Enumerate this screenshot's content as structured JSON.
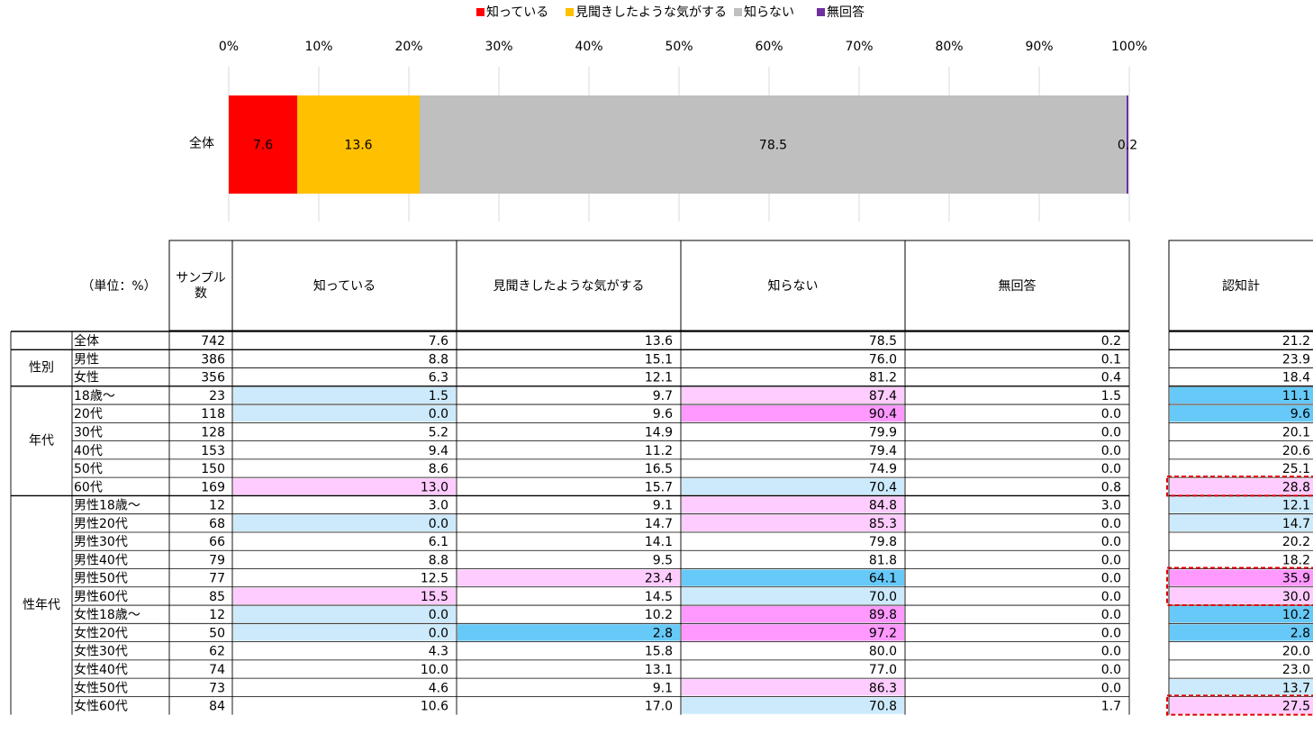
{
  "chart_data": {
    "type": "bar",
    "orientation": "horizontal",
    "stacked": true,
    "categories": [
      "全体"
    ],
    "series": [
      {
        "name": "知っている",
        "color": "#ff0000",
        "values": [
          7.6
        ]
      },
      {
        "name": "見聞きしたような気がする",
        "color": "#ffc000",
        "values": [
          13.6
        ]
      },
      {
        "name": "知らない",
        "color": "#bfbfbf",
        "values": [
          78.5
        ]
      },
      {
        "name": "無回答",
        "color": "#7030a0",
        "values": [
          0.2
        ]
      }
    ],
    "xlim": [
      0,
      100
    ],
    "xticks": [
      {
        "value": 0,
        "label": "0%"
      },
      {
        "value": 10,
        "label": "10%"
      },
      {
        "value": 20,
        "label": "20%"
      },
      {
        "value": 30,
        "label": "30%"
      },
      {
        "value": 40,
        "label": "40%"
      },
      {
        "value": 50,
        "label": "50%"
      },
      {
        "value": 60,
        "label": "60%"
      },
      {
        "value": 70,
        "label": "70%"
      },
      {
        "value": 80,
        "label": "80%"
      },
      {
        "value": 90,
        "label": "90%"
      },
      {
        "value": 100,
        "label": "100%"
      }
    ],
    "grid": true,
    "legend": "top"
  },
  "table": {
    "unit_label": "（単位：%）",
    "sample_header": "サンプル数",
    "headers": [
      "知っている",
      "見聞きしたような気がする",
      "知らない",
      "無回答"
    ],
    "total_header": "認知計",
    "groups": [
      {
        "rows": [
          {
            "label": "全体",
            "sample": "742",
            "values": [
              "7.6",
              "13.6",
              "78.5",
              "0.2"
            ],
            "total": "21.2"
          }
        ]
      },
      {
        "label": "性別",
        "rows": [
          {
            "label": "男性",
            "sample": "386",
            "values": [
              "8.8",
              "15.1",
              "76.0",
              "0.1"
            ],
            "total": "23.9"
          },
          {
            "label": "女性",
            "sample": "356",
            "values": [
              "6.3",
              "12.1",
              "81.2",
              "0.4"
            ],
            "total": "18.4"
          }
        ]
      },
      {
        "label": "年代",
        "rows": [
          {
            "label": "18歳～",
            "sample": "23",
            "values": [
              "1.5",
              "9.7",
              "87.4",
              "1.5"
            ],
            "total": "11.1"
          },
          {
            "label": "20代",
            "sample": "118",
            "values": [
              "0.0",
              "9.6",
              "90.4",
              "0.0"
            ],
            "total": "9.6"
          },
          {
            "label": "30代",
            "sample": "128",
            "values": [
              "5.2",
              "14.9",
              "79.9",
              "0.0"
            ],
            "total": "20.1"
          },
          {
            "label": "40代",
            "sample": "153",
            "values": [
              "9.4",
              "11.2",
              "79.4",
              "0.0"
            ],
            "total": "20.6"
          },
          {
            "label": "50代",
            "sample": "150",
            "values": [
              "8.6",
              "16.5",
              "74.9",
              "0.0"
            ],
            "total": "25.1"
          },
          {
            "label": "60代",
            "sample": "169",
            "values": [
              "13.0",
              "15.7",
              "70.4",
              "0.8"
            ],
            "total": "28.8"
          }
        ]
      },
      {
        "label": "性年代",
        "rows": [
          {
            "label": "男性18歳～",
            "sample": "12",
            "values": [
              "3.0",
              "9.1",
              "84.8",
              "3.0"
            ],
            "total": "12.1"
          },
          {
            "label": "男性20代",
            "sample": "68",
            "values": [
              "0.0",
              "14.7",
              "85.3",
              "0.0"
            ],
            "total": "14.7"
          },
          {
            "label": "男性30代",
            "sample": "66",
            "values": [
              "6.1",
              "14.1",
              "79.8",
              "0.0"
            ],
            "total": "20.2"
          },
          {
            "label": "男性40代",
            "sample": "79",
            "values": [
              "8.8",
              "9.5",
              "81.8",
              "0.0"
            ],
            "total": "18.2"
          },
          {
            "label": "男性50代",
            "sample": "77",
            "values": [
              "12.5",
              "23.4",
              "64.1",
              "0.0"
            ],
            "total": "35.9"
          },
          {
            "label": "男性60代",
            "sample": "85",
            "values": [
              "15.5",
              "14.5",
              "70.0",
              "0.0"
            ],
            "total": "30.0"
          },
          {
            "label": "女性18歳～",
            "sample": "12",
            "values": [
              "0.0",
              "10.2",
              "89.8",
              "0.0"
            ],
            "total": "10.2"
          },
          {
            "label": "女性20代",
            "sample": "50",
            "values": [
              "0.0",
              "2.8",
              "97.2",
              "0.0"
            ],
            "total": "2.8"
          },
          {
            "label": "女性30代",
            "sample": "62",
            "values": [
              "4.3",
              "15.8",
              "80.0",
              "0.0"
            ],
            "total": "20.0"
          },
          {
            "label": "女性40代",
            "sample": "74",
            "values": [
              "10.0",
              "13.1",
              "77.0",
              "0.0"
            ],
            "total": "23.0"
          },
          {
            "label": "女性50代",
            "sample": "73",
            "values": [
              "4.6",
              "9.1",
              "86.3",
              "0.0"
            ],
            "total": "13.7"
          },
          {
            "label": "女性60代",
            "sample": "84",
            "values": [
              "10.6",
              "17.0",
              "70.8",
              "1.7"
            ],
            "total": "27.5"
          }
        ]
      }
    ]
  }
}
